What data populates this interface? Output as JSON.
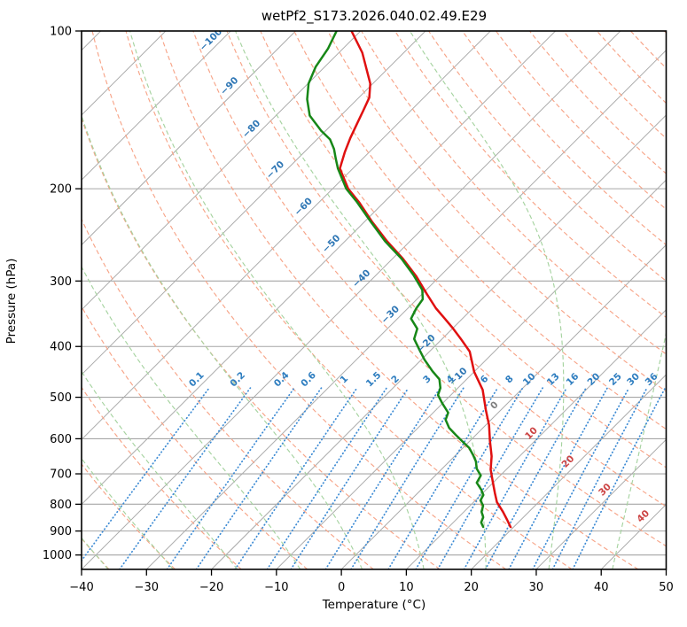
{
  "title": "wetPf2_S173.2026.040.02.49.E29",
  "axes": {
    "x": {
      "label": "Temperature (°C)",
      "min": -40,
      "max": 50,
      "ticks": [
        -40,
        -30,
        -20,
        -10,
        0,
        10,
        20,
        30,
        40,
        50
      ]
    },
    "y": {
      "label": "Pressure (hPa)",
      "scale": "log",
      "top_hpa": 100,
      "bottom_hpa": 1065,
      "ticks": [
        100,
        200,
        300,
        400,
        500,
        600,
        700,
        800,
        900,
        1000
      ]
    }
  },
  "chart_data": {
    "type": "line",
    "variant": "skew-t-log-p",
    "title": "wetPf2_S173.2026.040.02.49.E29",
    "xlabel": "Temperature (°C)",
    "ylabel": "Pressure (hPa)",
    "xlim": [
      -40,
      50
    ],
    "pressure_lim": [
      1065,
      100
    ],
    "skew_deg": 45,
    "grid": "on",
    "legend": "none",
    "series": [
      {
        "name": "temperature",
        "color": "#e01010",
        "points_p_t": [
          [
            100,
            -81.4
          ],
          [
            110,
            -76.4
          ],
          [
            126,
            -70.4
          ],
          [
            134,
            -68.4
          ],
          [
            142,
            -67.3
          ],
          [
            150,
            -66.3
          ],
          [
            160,
            -65.1
          ],
          [
            170,
            -63.8
          ],
          [
            183,
            -62.0
          ],
          [
            200,
            -57.6
          ],
          [
            212,
            -53.9
          ],
          [
            231,
            -48.9
          ],
          [
            252,
            -43.5
          ],
          [
            272,
            -38.4
          ],
          [
            294,
            -33.6
          ],
          [
            318,
            -29.2
          ],
          [
            338,
            -25.7
          ],
          [
            354,
            -22.7
          ],
          [
            368,
            -20.2
          ],
          [
            387,
            -17.1
          ],
          [
            409,
            -13.8
          ],
          [
            447,
            -10.0
          ],
          [
            484,
            -5.9
          ],
          [
            529,
            -2.3
          ],
          [
            565,
            0.5
          ],
          [
            606,
            3.1
          ],
          [
            648,
            5.7
          ],
          [
            687,
            7.6
          ],
          [
            728,
            10.0
          ],
          [
            762,
            11.9
          ],
          [
            793,
            13.6
          ],
          [
            827,
            16.0
          ],
          [
            857,
            17.9
          ],
          [
            884,
            19.5
          ]
        ]
      },
      {
        "name": "dewpoint",
        "color": "#178717",
        "points_p_t": [
          [
            100,
            -83.7
          ],
          [
            108,
            -82.3
          ],
          [
            117,
            -81.4
          ],
          [
            126,
            -79.9
          ],
          [
            135,
            -77.7
          ],
          [
            145,
            -74.8
          ],
          [
            155,
            -70.7
          ],
          [
            161,
            -68.0
          ],
          [
            168,
            -65.9
          ],
          [
            175,
            -64.2
          ],
          [
            183,
            -62.3
          ],
          [
            200,
            -57.9
          ],
          [
            212,
            -54.2
          ],
          [
            231,
            -49.1
          ],
          [
            252,
            -43.8
          ],
          [
            272,
            -38.6
          ],
          [
            292,
            -34.3
          ],
          [
            312,
            -30.6
          ],
          [
            325,
            -29.1
          ],
          [
            338,
            -28.7
          ],
          [
            354,
            -27.9
          ],
          [
            370,
            -25.4
          ],
          [
            387,
            -24.3
          ],
          [
            406,
            -21.8
          ],
          [
            424,
            -19.5
          ],
          [
            446,
            -16.5
          ],
          [
            462,
            -14.2
          ],
          [
            480,
            -12.7
          ],
          [
            495,
            -12.0
          ],
          [
            513,
            -10.1
          ],
          [
            535,
            -7.7
          ],
          [
            552,
            -7.0
          ],
          [
            572,
            -5.2
          ],
          [
            590,
            -3.1
          ],
          [
            606,
            -1.2
          ],
          [
            625,
            1.0
          ],
          [
            645,
            2.7
          ],
          [
            663,
            4.1
          ],
          [
            684,
            5.3
          ],
          [
            705,
            7.0
          ],
          [
            728,
            7.5
          ],
          [
            751,
            9.3
          ],
          [
            768,
            10.4
          ],
          [
            787,
            10.8
          ],
          [
            805,
            12.0
          ],
          [
            827,
            12.7
          ],
          [
            847,
            13.8
          ],
          [
            867,
            14.3
          ],
          [
            884,
            15.3
          ]
        ]
      }
    ],
    "background_lines": {
      "isobars": {
        "start": 100,
        "end": 1000,
        "step": 100,
        "color": "#a6a6a6",
        "style": "solid"
      },
      "isotherms": {
        "start": -120,
        "end": 50,
        "step": 10,
        "color": "#ababab",
        "style": "solid"
      },
      "dry_adiabats": {
        "theta_start": -40,
        "theta_end": 190,
        "step": 10,
        "color": "#f7a488",
        "style": "dashed"
      },
      "moist_adiabats": {
        "t_surface_start": -40,
        "t_surface_end": 40,
        "step": 10,
        "color": "#a6d3a0",
        "style": "dashed"
      },
      "mixing_ratio_lines": {
        "values_g_kg": [
          0.1,
          0.2,
          0.4,
          0.6,
          1,
          1.5,
          2,
          3,
          4,
          6,
          8,
          10,
          13,
          16,
          20,
          25,
          30,
          36
        ],
        "color": "#3d8bd4",
        "style": "dotted",
        "top_p": 480
      }
    },
    "isotherm_labels": [
      {
        "t": -100,
        "p": 106
      },
      {
        "t": -90,
        "p": 130
      },
      {
        "t": -80,
        "p": 157
      },
      {
        "t": -70,
        "p": 188
      },
      {
        "t": -60,
        "p": 221
      },
      {
        "t": -50,
        "p": 260
      },
      {
        "t": -40,
        "p": 303
      },
      {
        "t": -30,
        "p": 355
      },
      {
        "t": -20,
        "p": 403
      },
      {
        "t": -10,
        "p": 466
      },
      {
        "t": 0,
        "p": 529
      },
      {
        "t": 10,
        "p": 598
      },
      {
        "t": 20,
        "p": 677
      },
      {
        "t": 30,
        "p": 766
      },
      {
        "t": 40,
        "p": 861
      }
    ],
    "isotherm_label_colors": {
      "negative": "#2f77b5",
      "zero": "#7f7f7f",
      "positive": "#cc4444"
    },
    "mixing_ratio_labels": {
      "values": [
        "0.1",
        "0.2",
        "0.4",
        "0.6",
        "1",
        "1.5",
        "2",
        "3",
        "4",
        "6",
        "8",
        "10",
        "13",
        "16",
        "20",
        "25",
        "30",
        "36"
      ],
      "p": 470,
      "color": "#2f7ec0"
    }
  }
}
